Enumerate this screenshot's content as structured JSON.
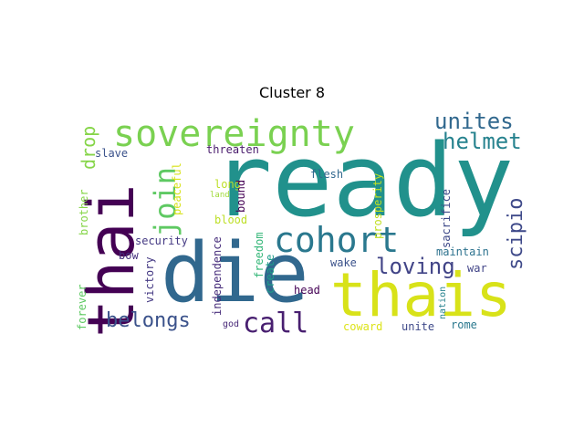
{
  "title": "Cluster 8",
  "words": [
    {
      "text": "ready",
      "color": "#21918c"
    },
    {
      "text": "die",
      "color": "#31688e"
    },
    {
      "text": "thais",
      "color": "#d8e219"
    },
    {
      "text": "thai",
      "color": "#440154"
    },
    {
      "text": "sovereignty",
      "color": "#7ad151"
    },
    {
      "text": "cohort",
      "color": "#2a788e"
    },
    {
      "text": "join",
      "color": "#5ec962"
    },
    {
      "text": "call",
      "color": "#481f70"
    },
    {
      "text": "unites",
      "color": "#31688e"
    },
    {
      "text": "helmet",
      "color": "#26828e"
    },
    {
      "text": "belongs",
      "color": "#3b528b"
    },
    {
      "text": "loving",
      "color": "#414487"
    },
    {
      "text": "scipio",
      "color": "#3e4989"
    },
    {
      "text": "drop",
      "color": "#86d549"
    },
    {
      "text": "slave",
      "color": "#3b528b"
    },
    {
      "text": "threaten",
      "color": "#481a6c"
    },
    {
      "text": "flesh",
      "color": "#31688e"
    },
    {
      "text": "long",
      "color": "#bddf26"
    },
    {
      "text": "land",
      "color": "#a0da39"
    },
    {
      "text": "bound",
      "color": "#440154"
    },
    {
      "text": "peaceful",
      "color": "#d8e219"
    },
    {
      "text": "prosperity",
      "color": "#c2df23"
    },
    {
      "text": "brother",
      "color": "#86d549"
    },
    {
      "text": "blood",
      "color": "#bddf26"
    },
    {
      "text": "sacrifice",
      "color": "#3e4989"
    },
    {
      "text": "security",
      "color": "#443983"
    },
    {
      "text": "maintain",
      "color": "#2c728e"
    },
    {
      "text": "bow",
      "color": "#46327e"
    },
    {
      "text": "freedom",
      "color": "#35b779"
    },
    {
      "text": "wake",
      "color": "#3b528b"
    },
    {
      "text": "war",
      "color": "#414487"
    },
    {
      "text": "victory",
      "color": "#443983"
    },
    {
      "text": "independence",
      "color": "#472d7b"
    },
    {
      "text": "create",
      "color": "#1f9e89"
    },
    {
      "text": "forever",
      "color": "#5ec962"
    },
    {
      "text": "head",
      "color": "#440154"
    },
    {
      "text": "nation",
      "color": "#26828e"
    },
    {
      "text": "god",
      "color": "#482878"
    },
    {
      "text": "coward",
      "color": "#dce319"
    },
    {
      "text": "unite",
      "color": "#3e4989"
    },
    {
      "text": "rome",
      "color": "#2a788e"
    }
  ]
}
